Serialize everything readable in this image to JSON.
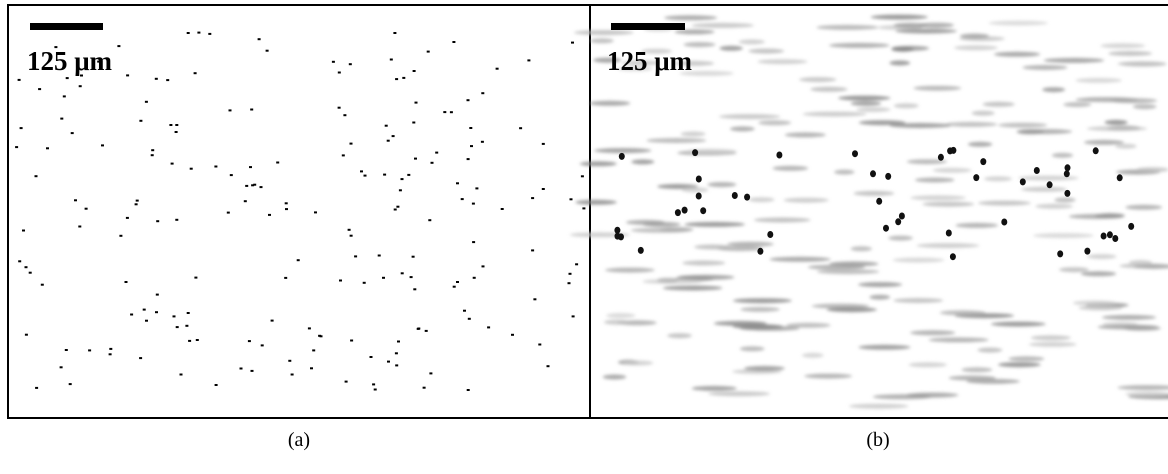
{
  "panels": [
    {
      "scale_label": "125 μm",
      "caption": "(a)"
    },
    {
      "scale_label": "125 μm",
      "caption": "(b)"
    }
  ]
}
